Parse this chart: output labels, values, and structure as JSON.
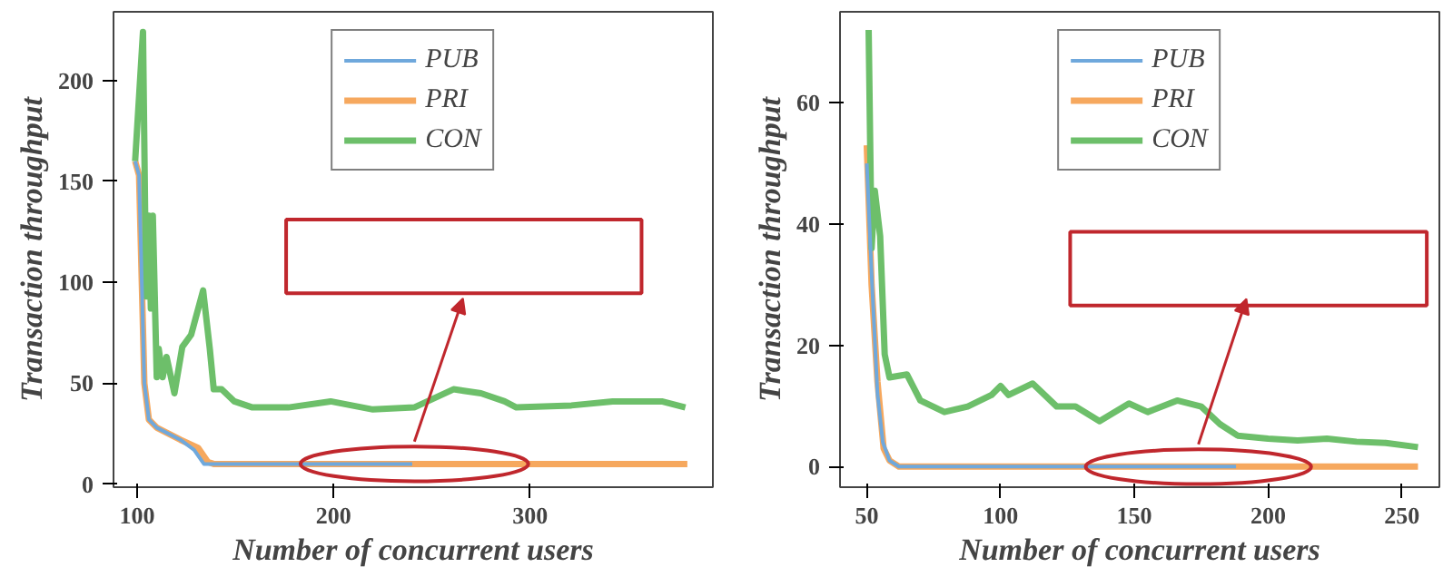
{
  "chart_data": [
    {
      "type": "line",
      "xlabel": "Number of concurrent users",
      "ylabel": "Transaction throughput",
      "xlim": [
        88,
        393
      ],
      "ylim": [
        -1.5,
        234
      ],
      "xticks": [
        100,
        200,
        300
      ],
      "yticks": [
        0,
        50,
        100,
        150,
        200
      ],
      "grid": false,
      "legend": "top",
      "line_style": "solid",
      "marker": "none",
      "series": [
        {
          "name": "PUB",
          "color": "#6fa8dc",
          "x": [
            99,
            101,
            103.7,
            106,
            110,
            122,
            129,
            134,
            140,
            240
          ],
          "values": [
            160,
            153,
            50,
            32,
            28,
            22,
            17,
            10,
            10,
            10
          ]
        },
        {
          "name": "PRI",
          "color": "#f6a85e",
          "x": [
            99,
            101,
            103.7,
            106,
            110,
            122,
            131,
            136,
            139,
            152.6,
            380
          ],
          "values": [
            160,
            153,
            50,
            32,
            28,
            22,
            18,
            11,
            10,
            10,
            10
          ]
        },
        {
          "name": "CON",
          "color": "#6dbf6a",
          "x": [
            99,
            103,
            104.6,
            106,
            107,
            108,
            110,
            111,
            113,
            115,
            119,
            123,
            127.5,
            133.6,
            137,
            139,
            143,
            149.5,
            158.7,
            177,
            198.5,
            220,
            241,
            261,
            275,
            287,
            293,
            321,
            342,
            367,
            379
          ],
          "values": [
            160,
            224,
            93,
            133,
            87,
            133,
            53,
            67,
            53,
            63,
            45,
            68,
            74,
            96,
            67,
            47,
            47,
            41,
            38,
            38,
            41,
            37,
            38,
            47,
            45,
            41,
            38,
            39,
            41,
            41,
            38
          ]
        }
      ]
    },
    {
      "type": "line",
      "xlabel": "Number of concurrent users",
      "ylabel": "Transaction throughput",
      "xlim": [
        40,
        264
      ],
      "ylim": [
        -3.4,
        75
      ],
      "xticks": [
        50,
        100,
        150,
        200,
        250
      ],
      "yticks": [
        0,
        20,
        40,
        60
      ],
      "grid": false,
      "legend": "top",
      "line_style": "solid",
      "marker": "none",
      "series": [
        {
          "name": "PUB",
          "color": "#6fa8dc",
          "x": [
            50,
            52,
            54,
            56,
            58.5,
            62,
            66,
            188
          ],
          "values": [
            50,
            30,
            12,
            4,
            1,
            0,
            0,
            0
          ]
        },
        {
          "name": "PRI",
          "color": "#f6a85e",
          "x": [
            50,
            51.8,
            54,
            56.3,
            58.5,
            62,
            256
          ],
          "values": [
            53,
            30,
            14,
            3,
            1,
            0,
            0
          ]
        },
        {
          "name": "CON",
          "color": "#6dbf6a",
          "x": [
            50.7,
            51.8,
            53,
            55,
            56.7,
            58.5,
            65,
            70,
            79,
            87.7,
            96.6,
            100,
            103,
            112,
            121,
            128,
            137,
            148,
            155,
            166,
            175,
            182,
            188.6,
            200,
            211,
            222,
            233,
            244,
            256
          ],
          "values": [
            72,
            36,
            45.5,
            38,
            18.5,
            14.7,
            15.2,
            10.9,
            9,
            9.9,
            11.8,
            13.3,
            11.8,
            13.7,
            9.9,
            9.9,
            7.5,
            10.4,
            9,
            10.9,
            9.9,
            7,
            5.1,
            4.6,
            4.3,
            4.6,
            4.1,
            3.9,
            3.2
          ]
        }
      ]
    }
  ]
}
